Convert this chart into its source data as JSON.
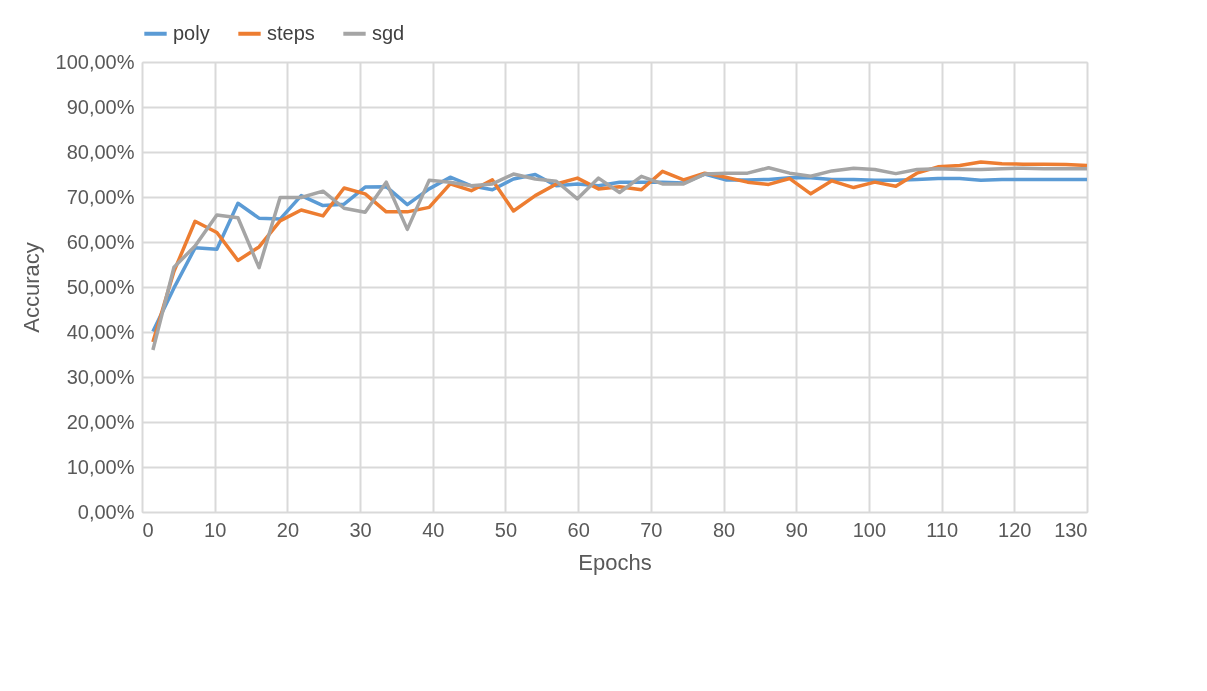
{
  "chart_data": {
    "type": "line",
    "xlabel": "Epochs",
    "ylabel": "Accuracy",
    "x": [
      1.5,
      4.4,
      7.3,
      10.3,
      13.2,
      16.1,
      19.0,
      21.9,
      24.9,
      27.8,
      30.7,
      33.6,
      36.5,
      39.5,
      42.4,
      45.3,
      48.2,
      51.1,
      54.1,
      57.0,
      59.9,
      62.8,
      65.7,
      68.7,
      71.6,
      74.5,
      77.4,
      80.3,
      83.3,
      86.2,
      89.1,
      92.0,
      94.9,
      97.9,
      100.8,
      103.7,
      106.6,
      109.5,
      112.5,
      115.4,
      118.3,
      121.2,
      124.1,
      127.1,
      130.0
    ],
    "series": [
      {
        "name": "poly",
        "color": "#5b9bd5",
        "values": [
          40.1,
          49.8,
          58.7,
          58.4,
          68.6,
          65.3,
          65.1,
          70.3,
          68.1,
          68.4,
          72.2,
          72.3,
          68.3,
          71.8,
          74.4,
          72.5,
          71.6,
          74.0,
          75.0,
          72.5,
          72.9,
          72.5,
          73.3,
          73.3,
          73.3,
          73.1,
          75.1,
          73.8,
          73.8,
          73.9,
          74.3,
          74.3,
          73.9,
          73.9,
          73.7,
          73.7,
          73.9,
          74.1,
          74.1,
          73.7,
          73.9,
          73.9,
          73.9,
          73.9,
          73.9
        ]
      },
      {
        "name": "steps",
        "color": "#ed7d31",
        "values": [
          37.8,
          53.5,
          64.6,
          62.1,
          55.9,
          58.9,
          64.7,
          67.1,
          65.8,
          72.0,
          70.7,
          66.7,
          66.7,
          67.7,
          72.9,
          71.4,
          73.8,
          66.9,
          70.3,
          72.9,
          74.2,
          71.8,
          72.3,
          71.6,
          75.7,
          73.8,
          75.3,
          74.4,
          73.3,
          72.8,
          74.1,
          70.7,
          73.6,
          72.1,
          73.3,
          72.4,
          75.3,
          76.7,
          77.0,
          77.8,
          77.4,
          77.3,
          77.3,
          77.2,
          77.0
        ]
      },
      {
        "name": "sgd",
        "color": "#a5a5a5",
        "values": [
          36.0,
          54.4,
          59.1,
          66.0,
          65.4,
          54.3,
          69.9,
          69.9,
          71.3,
          67.5,
          66.6,
          73.3,
          62.8,
          73.7,
          73.3,
          72.5,
          72.9,
          75.1,
          74.0,
          73.5,
          69.6,
          74.2,
          71.0,
          74.6,
          72.9,
          72.9,
          75.1,
          75.3,
          75.3,
          76.5,
          75.3,
          74.6,
          75.8,
          76.4,
          76.1,
          75.2,
          76.1,
          76.3,
          76.1,
          76.1,
          76.3,
          76.4,
          76.3,
          76.3,
          76.3
        ]
      }
    ],
    "xlim": [
      0,
      130
    ],
    "xticks": [
      0,
      10,
      20,
      30,
      40,
      50,
      60,
      70,
      80,
      90,
      100,
      110,
      120,
      130
    ],
    "ylim": [
      0,
      100
    ],
    "yticks": [
      {
        "value": 0,
        "label": "0,00%"
      },
      {
        "value": 10,
        "label": "10,00%"
      },
      {
        "value": 20,
        "label": "20,00%"
      },
      {
        "value": 30,
        "label": "30,00%"
      },
      {
        "value": 40,
        "label": "40,00%"
      },
      {
        "value": 50,
        "label": "50,00%"
      },
      {
        "value": 60,
        "label": "60,00%"
      },
      {
        "value": 70,
        "label": "70,00%"
      },
      {
        "value": 80,
        "label": "80,00%"
      },
      {
        "value": 90,
        "label": "90,00%"
      },
      {
        "value": 100,
        "label": "100,00%"
      }
    ],
    "grid": true,
    "legend": "top",
    "marker": "none",
    "line_style": "solid"
  }
}
